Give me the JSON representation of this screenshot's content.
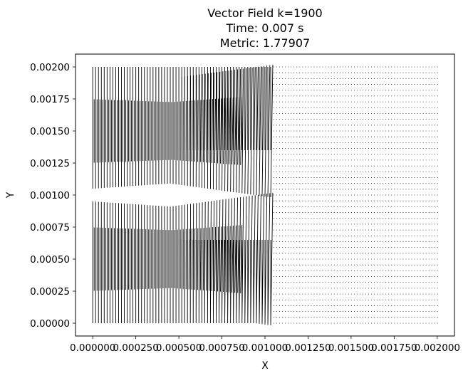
{
  "chart_data": {
    "type": "quiver",
    "title_lines": [
      "Vector Field k=1900",
      "Time: 0.007 s",
      "Metric: 1.77907"
    ],
    "xlabel": "X",
    "ylabel": "Y",
    "xlim": [
      -0.0001,
      0.0021
    ],
    "ylim": [
      -0.0001,
      0.0021
    ],
    "xticks": [
      0.0,
      0.00025,
      0.0005,
      0.00075,
      0.001,
      0.00125,
      0.0015,
      0.00175,
      0.002
    ],
    "xtick_labels": [
      "0.000000",
      "0.000250",
      "0.000500",
      "0.000750",
      "0.001000",
      "0.001250",
      "0.001500",
      "0.001750",
      "0.002000"
    ],
    "yticks": [
      0.0,
      0.00025,
      0.0005,
      0.00075,
      0.001,
      0.00125,
      0.0015,
      0.00175,
      0.002
    ],
    "ytick_labels": [
      "0.00000",
      "0.00025",
      "0.00050",
      "0.00075",
      "0.00100",
      "0.00125",
      "0.00150",
      "0.00175",
      "0.00200"
    ],
    "grid": false,
    "legend": null,
    "color": "#000000",
    "field": {
      "x_range": [
        0.0,
        0.002
      ],
      "y_range": [
        0.0,
        0.002
      ],
      "x_samples": 121,
      "jet_centers": [
        0.0005,
        0.0015
      ],
      "jet_halfwidth_inlet": 0.00045,
      "front_x": 0.00105,
      "fade_x": 0.00135
    }
  }
}
